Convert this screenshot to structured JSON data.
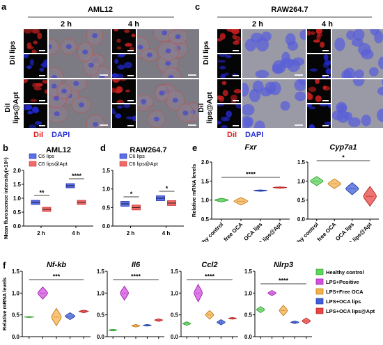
{
  "panels": {
    "a": {
      "letter": "a",
      "title": "AML12",
      "times": [
        "2 h",
        "4 h"
      ],
      "rows": [
        "DiI lips",
        "DiI lips@Apt"
      ],
      "legend": {
        "dil": "DiI",
        "dapi": "DAPI"
      }
    },
    "c": {
      "letter": "c",
      "title": "RAW264.7",
      "times": [
        "2 h",
        "4 h"
      ],
      "rows": [
        "DiI lips",
        "DiI lips@Apt"
      ],
      "legend": {
        "dil": "DiI",
        "dapi": "DAPI"
      }
    }
  },
  "colors": {
    "dil": "#e02020",
    "dapi": "#2630d8",
    "blue_box": "#5b6fe6",
    "red_box": "#f06a6a",
    "violin_green": "#5cd65c",
    "violin_magenta": "#d44fe0",
    "violin_orange": "#f6b04a",
    "violin_blue": "#3f5fd6",
    "violin_red": "#e84545"
  },
  "chart_data": [
    {
      "id": "b",
      "letter": "b",
      "type": "box",
      "title": "AML12",
      "ylabel": "Mean fluroscence intensity(×10⁶)",
      "ylim": [
        0,
        2.0
      ],
      "yticks": [
        "0.0",
        "0.5",
        "1.0",
        "1.5",
        "2.0"
      ],
      "categories": [
        "2 h",
        "4 h"
      ],
      "series": [
        {
          "name": "C6 lips",
          "values": [
            0.85,
            1.45
          ]
        },
        {
          "name": "C6 lips@Apt",
          "values": [
            0.6,
            0.85
          ]
        }
      ],
      "significance": [
        "**",
        "****"
      ]
    },
    {
      "id": "d",
      "letter": "d",
      "type": "box",
      "title": "RAW264.7",
      "ylabel": "",
      "ylim": [
        0,
        1.5
      ],
      "yticks": [
        "0.0",
        "0.5",
        "1.0",
        "1.5"
      ],
      "categories": [
        "2 h",
        "4 h"
      ],
      "series": [
        {
          "name": "C6 lips",
          "values": [
            0.6,
            0.75
          ]
        },
        {
          "name": "C6 lips@Apt",
          "values": [
            0.5,
            0.62
          ]
        }
      ],
      "significance": [
        "*",
        "*"
      ]
    },
    {
      "id": "e1",
      "letter": "e",
      "type": "violin",
      "title": "Fxr",
      "ylabel": "Relative mRNA levels",
      "ylim": [
        0.5,
        2.0
      ],
      "yticks": [
        "0.5",
        "1.0",
        "1.5",
        "2.0"
      ],
      "categories": [
        "Healthy control",
        "free OCA",
        "OCA lips",
        "OCA lips@Apt"
      ],
      "values": [
        1.0,
        0.97,
        1.25,
        1.33
      ],
      "significance": "****"
    },
    {
      "id": "e2",
      "type": "violin",
      "title": "Cyp7a1",
      "ylabel": "",
      "ylim": [
        0.0,
        1.5
      ],
      "yticks": [
        "0.0",
        "0.5",
        "1.0",
        "1.5"
      ],
      "categories": [
        "Healthy control",
        "free OCA",
        "OCA lips",
        "OCA lips@Apt"
      ],
      "values": [
        1.0,
        0.93,
        0.8,
        0.6
      ],
      "significance": "*"
    },
    {
      "id": "f1",
      "letter": "f",
      "type": "violin",
      "title": "Nf-kb",
      "ylabel": "Relative mRNA levels",
      "ylim": [
        0.0,
        1.5
      ],
      "yticks": [
        "0.0",
        "0.5",
        "1.0",
        "1.5"
      ],
      "values": [
        0.45,
        1.0,
        0.45,
        0.47,
        0.58
      ],
      "significance": "***"
    },
    {
      "id": "f2",
      "type": "violin",
      "title": "Il6",
      "ylabel": "",
      "ylim": [
        0.0,
        1.5
      ],
      "yticks": [
        "0.0",
        "0.5",
        "1.0",
        "1.5"
      ],
      "values": [
        0.15,
        1.0,
        0.25,
        0.26,
        0.38
      ],
      "significance": "****"
    },
    {
      "id": "f3",
      "type": "violin",
      "title": "Ccl2",
      "ylabel": "",
      "ylim": [
        0.0,
        1.5
      ],
      "yticks": [
        "0.0",
        "0.5",
        "1.0",
        "1.5"
      ],
      "values": [
        0.3,
        1.0,
        0.5,
        0.33,
        0.42
      ],
      "significance": "****"
    },
    {
      "id": "f4",
      "type": "violin",
      "title": "Nlrp3",
      "ylabel": "",
      "ylim": [
        0.0,
        1.5
      ],
      "yticks": [
        "0.0",
        "0.5",
        "1.0",
        "1.5"
      ],
      "values": [
        0.62,
        1.0,
        0.6,
        0.33,
        0.36
      ],
      "significance": "****",
      "legend": [
        "Healthy control",
        "LPS+Positive",
        "LPS+Free OCA",
        "LPS+OCA lips",
        "LPS+OCA lips@Apt"
      ]
    }
  ]
}
